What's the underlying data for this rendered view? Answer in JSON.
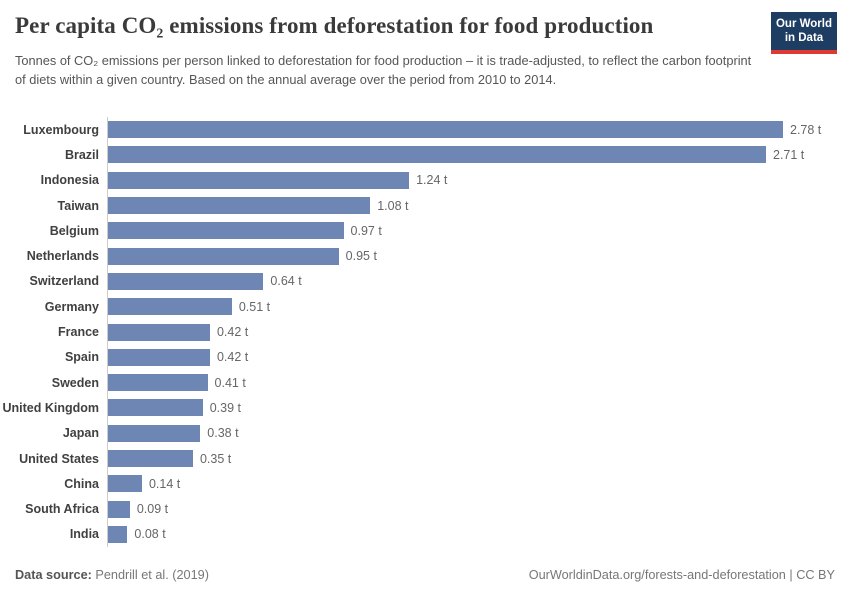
{
  "header": {
    "title": "Per capita CO₂ emissions from deforestation for food production",
    "subtitle": "Tonnes of CO₂ emissions per person linked to deforestation for food production – it is trade-adjusted, to reflect the carbon footprint of diets within a given country. Based on the annual average over the period from 2010 to 2014."
  },
  "logo": {
    "line1": "Our World",
    "line2": "in Data",
    "bg_color": "#1d3d63",
    "accent_color": "#dc3a33"
  },
  "chart_data": {
    "type": "bar",
    "orientation": "horizontal",
    "title": "Per capita CO₂ emissions from deforestation for food production",
    "unit": "t",
    "xlabel": "",
    "ylabel": "",
    "xlim": [
      0,
      2.78
    ],
    "grid": false,
    "legend": false,
    "bar_color": "#6e86b3",
    "axis_line_color": "#cccccc",
    "categories": [
      "Luxembourg",
      "Brazil",
      "Indonesia",
      "Taiwan",
      "Belgium",
      "Netherlands",
      "Switzerland",
      "Germany",
      "France",
      "Spain",
      "Sweden",
      "United Kingdom",
      "Japan",
      "United States",
      "China",
      "South Africa",
      "India"
    ],
    "values": [
      2.78,
      2.71,
      1.24,
      1.08,
      0.97,
      0.95,
      0.64,
      0.51,
      0.42,
      0.42,
      0.41,
      0.39,
      0.38,
      0.35,
      0.14,
      0.09,
      0.08
    ],
    "value_labels": [
      "2.78 t",
      "2.71 t",
      "1.24 t",
      "1.08 t",
      "0.97 t",
      "0.95 t",
      "0.64 t",
      "0.51 t",
      "0.42 t",
      "0.42 t",
      "0.41 t",
      "0.39 t",
      "0.38 t",
      "0.35 t",
      "0.14 t",
      "0.09 t",
      "0.08 t"
    ]
  },
  "footer": {
    "source_label": "Data source:",
    "source_value": " Pendrill et al. (2019)",
    "credit": "OurWorldinData.org/forests-and-deforestation | CC BY"
  }
}
